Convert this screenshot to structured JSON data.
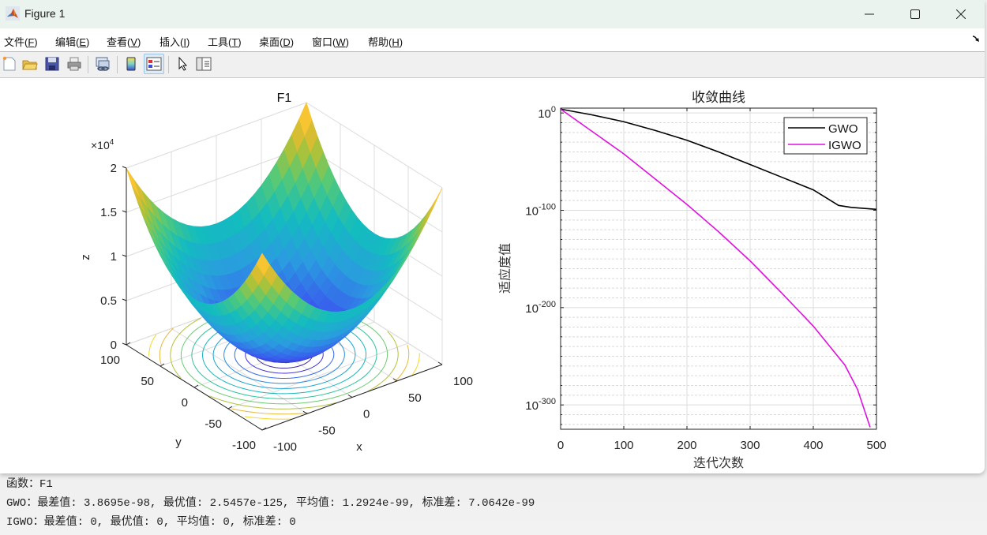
{
  "window": {
    "title": "Figure 1",
    "controls": {
      "minimize": "minimize-icon",
      "maximize": "maximize-icon",
      "close": "close-icon"
    }
  },
  "menubar": {
    "items": [
      {
        "label": "文件(",
        "key": "F",
        "end": ")"
      },
      {
        "label": "编辑(",
        "key": "E",
        "end": ")"
      },
      {
        "label": "查看(",
        "key": "V",
        "end": ")"
      },
      {
        "label": "插入(",
        "key": "I",
        "end": ")"
      },
      {
        "label": "工具(",
        "key": "T",
        "end": ")"
      },
      {
        "label": "桌面(",
        "key": "D",
        "end": ")"
      },
      {
        "label": "窗口(",
        "key": "W",
        "end": ")"
      },
      {
        "label": "帮助(",
        "key": "H",
        "end": ")"
      }
    ],
    "dock_icon": "dock-arrow-icon"
  },
  "toolbar": {
    "buttons": [
      "new-figure-icon",
      "open-folder-icon",
      "save-icon",
      "print-icon",
      "link-plot-icon",
      "colorbar-icon",
      "legend-icon",
      "pointer-icon",
      "property-inspector-icon"
    ]
  },
  "chart_data": [
    {
      "type": "surface3d",
      "title": "F1",
      "xlabel": "x",
      "ylabel": "y",
      "zlabel": "z",
      "z_exponent": "×10^4",
      "x_ticks": [
        "-100",
        "-50",
        "0",
        "50",
        "100"
      ],
      "y_ticks": [
        "-100",
        "-50",
        "0",
        "50",
        "100"
      ],
      "z_ticks": [
        "0",
        "0.5",
        "1",
        "1.5",
        "2"
      ],
      "xlim": [
        -100,
        100
      ],
      "ylim": [
        -100,
        100
      ],
      "zlim": [
        0,
        20000
      ],
      "function": "z = x^2 + y^2",
      "colormap": "parula",
      "contour_levels": 11,
      "grid": true
    },
    {
      "type": "line",
      "title": "收敛曲线",
      "xlabel": "迭代次数",
      "ylabel": "适应度值",
      "yscale": "log",
      "x_ticks": [
        "0",
        "100",
        "200",
        "300",
        "400",
        "500"
      ],
      "y_ticks": [
        {
          "base": "10",
          "exp": "0"
        },
        {
          "base": "10",
          "exp": "-100"
        },
        {
          "base": "10",
          "exp": "-200"
        },
        {
          "base": "10",
          "exp": "-300"
        }
      ],
      "xlim": [
        0,
        500
      ],
      "ylim_log10": [
        -325,
        5
      ],
      "grid": true,
      "minor_grid": true,
      "legend_position": "northeast",
      "series": [
        {
          "name": "GWO",
          "color": "#000000",
          "x": [
            0,
            50,
            100,
            150,
            200,
            250,
            300,
            350,
            400,
            420,
            440,
            460,
            480,
            500
          ],
          "log10_y": [
            4,
            -2,
            -9,
            -18,
            -28,
            -40,
            -53,
            -66,
            -79,
            -87,
            -95,
            -97,
            -98,
            -99
          ]
        },
        {
          "name": "IGWO",
          "color": "#e011e0",
          "x": [
            0,
            50,
            100,
            150,
            200,
            250,
            300,
            350,
            400,
            450,
            470,
            490
          ],
          "log10_y": [
            4,
            -19,
            -42,
            -68,
            -94,
            -122,
            -152,
            -185,
            -219,
            -259,
            -284,
            -323
          ]
        }
      ]
    }
  ],
  "console": {
    "lines": [
      "函数：F1",
      "GWO：最差值: 3.8695e-98, 最优值: 2.5457e-125, 平均值: 1.2924e-99, 标准差: 7.0642e-99",
      "IGWO：最差值: 0, 最优值: 0, 平均值: 0, 标准差: 0"
    ]
  }
}
